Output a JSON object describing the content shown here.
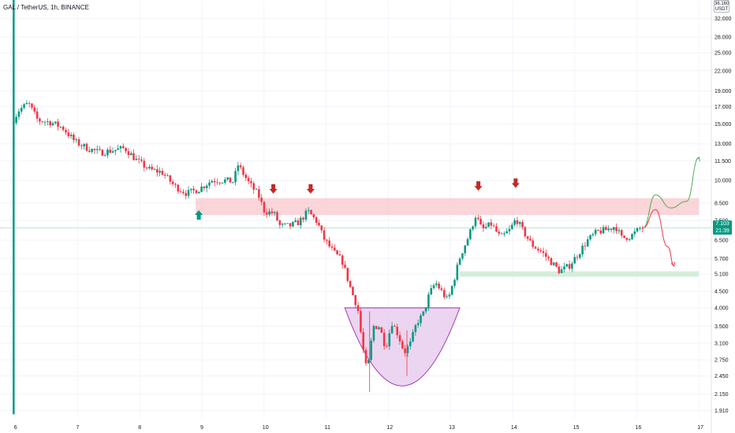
{
  "header": {
    "title": "GAL / TetherUS, 1h, BINANCE"
  },
  "price_scale": {
    "currency_top": "36.160",
    "currency_label": "USDT",
    "last_price": "7.103",
    "countdown": "21:39"
  },
  "colors": {
    "up": "#089981",
    "down": "#f23645",
    "resistance_zone": "#f8c7cc",
    "support_zone": "#cdebd3",
    "cup_fill": "#e9d1ef",
    "cup_stroke": "#9c27b0",
    "arrow_red": "#c62828",
    "arrow_green": "#089981"
  },
  "chart_data": {
    "type": "candlestick",
    "title": "GAL / TetherUS, 1h, BINANCE",
    "y_axis": {
      "scale": "log",
      "ticks": [
        "32.000",
        "28.000",
        "25.000",
        "22.000",
        "19.000",
        "17.000",
        "15.000",
        "13.000",
        "11.500",
        "10.000",
        "8.500",
        "7.500",
        "6.500",
        "5.700",
        "5.100",
        "4.500",
        "4.000",
        "3.500",
        "3.100",
        "2.750",
        "2.450",
        "2.150",
        "1.910"
      ],
      "range": [
        1.8,
        36.16
      ]
    },
    "x_axis": {
      "ticks": [
        "6",
        "7",
        "8",
        "9",
        "10",
        "11",
        "12",
        "13",
        "14",
        "15",
        "16",
        "17"
      ],
      "range": [
        5.75,
        17.2
      ]
    },
    "price_path": [
      [
        5.97,
        15.0
      ],
      [
        6.1,
        16.6
      ],
      [
        6.25,
        17.4
      ],
      [
        6.4,
        15.4
      ],
      [
        6.6,
        15.2
      ],
      [
        6.8,
        14.6
      ],
      [
        7.0,
        13.2
      ],
      [
        7.2,
        12.6
      ],
      [
        7.4,
        12.2
      ],
      [
        7.6,
        12.4
      ],
      [
        7.8,
        12.6
      ],
      [
        8.0,
        11.5
      ],
      [
        8.2,
        10.8
      ],
      [
        8.4,
        10.6
      ],
      [
        8.6,
        9.6
      ],
      [
        8.8,
        9.1
      ],
      [
        9.0,
        9.4
      ],
      [
        9.2,
        10.0
      ],
      [
        9.4,
        10.0
      ],
      [
        9.55,
        9.9
      ],
      [
        9.62,
        11.2
      ],
      [
        9.8,
        9.8
      ],
      [
        9.95,
        9.0
      ],
      [
        10.05,
        8.0
      ],
      [
        10.2,
        7.9
      ],
      [
        10.3,
        7.2
      ],
      [
        10.45,
        7.2
      ],
      [
        10.6,
        7.4
      ],
      [
        10.75,
        8.0
      ],
      [
        10.9,
        7.4
      ],
      [
        11.0,
        6.6
      ],
      [
        11.15,
        6.0
      ],
      [
        11.3,
        5.6
      ],
      [
        11.45,
        4.5
      ],
      [
        11.55,
        4.0
      ],
      [
        11.62,
        3.1
      ],
      [
        11.7,
        2.5
      ],
      [
        11.8,
        3.5
      ],
      [
        11.9,
        3.5
      ],
      [
        12.0,
        3.0
      ],
      [
        12.1,
        3.6
      ],
      [
        12.2,
        3.3
      ],
      [
        12.3,
        2.9
      ],
      [
        12.4,
        3.1
      ],
      [
        12.5,
        3.6
      ],
      [
        12.6,
        3.8
      ],
      [
        12.7,
        4.4
      ],
      [
        12.8,
        4.8
      ],
      [
        12.9,
        4.5
      ],
      [
        13.0,
        4.2
      ],
      [
        13.1,
        4.9
      ],
      [
        13.2,
        5.8
      ],
      [
        13.35,
        6.8
      ],
      [
        13.45,
        7.8
      ],
      [
        13.55,
        7.0
      ],
      [
        13.7,
        7.3
      ],
      [
        13.85,
        6.6
      ],
      [
        14.0,
        7.0
      ],
      [
        14.1,
        7.6
      ],
      [
        14.2,
        7.0
      ],
      [
        14.35,
        6.3
      ],
      [
        14.5,
        6.0
      ],
      [
        14.65,
        5.6
      ],
      [
        14.8,
        5.2
      ],
      [
        14.95,
        5.4
      ],
      [
        15.1,
        5.9
      ],
      [
        15.25,
        6.5
      ],
      [
        15.4,
        6.9
      ],
      [
        15.55,
        7.0
      ],
      [
        15.7,
        7.2
      ],
      [
        15.8,
        6.6
      ],
      [
        15.95,
        6.7
      ],
      [
        16.1,
        7.1
      ]
    ],
    "annotations": {
      "resistance_zone": {
        "y": [
          7.8,
          8.8
        ],
        "x": [
          8.9,
          17.0
        ]
      },
      "support_zone": {
        "y": [
          5.0,
          5.2
        ],
        "x": [
          13.15,
          17.0
        ]
      },
      "cup": {
        "top_y": 4.0,
        "bottom_y": 2.28,
        "x": [
          11.3,
          13.15
        ]
      },
      "down_arrows": [
        [
          10.15,
          9.4
        ],
        [
          10.75,
          9.4
        ],
        [
          13.45,
          9.6
        ],
        [
          14.05,
          9.8
        ]
      ],
      "up_arrows": [
        [
          8.95,
          7.8
        ]
      ],
      "bullish_projection": [
        [
          16.1,
          7.1
        ],
        [
          16.3,
          9.0
        ],
        [
          16.55,
          8.2
        ],
        [
          16.8,
          8.6
        ],
        [
          17.0,
          11.8
        ]
      ],
      "bearish_projection": [
        [
          16.1,
          7.1
        ],
        [
          16.3,
          8.1
        ],
        [
          16.5,
          6.2
        ],
        [
          16.6,
          5.4
        ]
      ]
    }
  }
}
